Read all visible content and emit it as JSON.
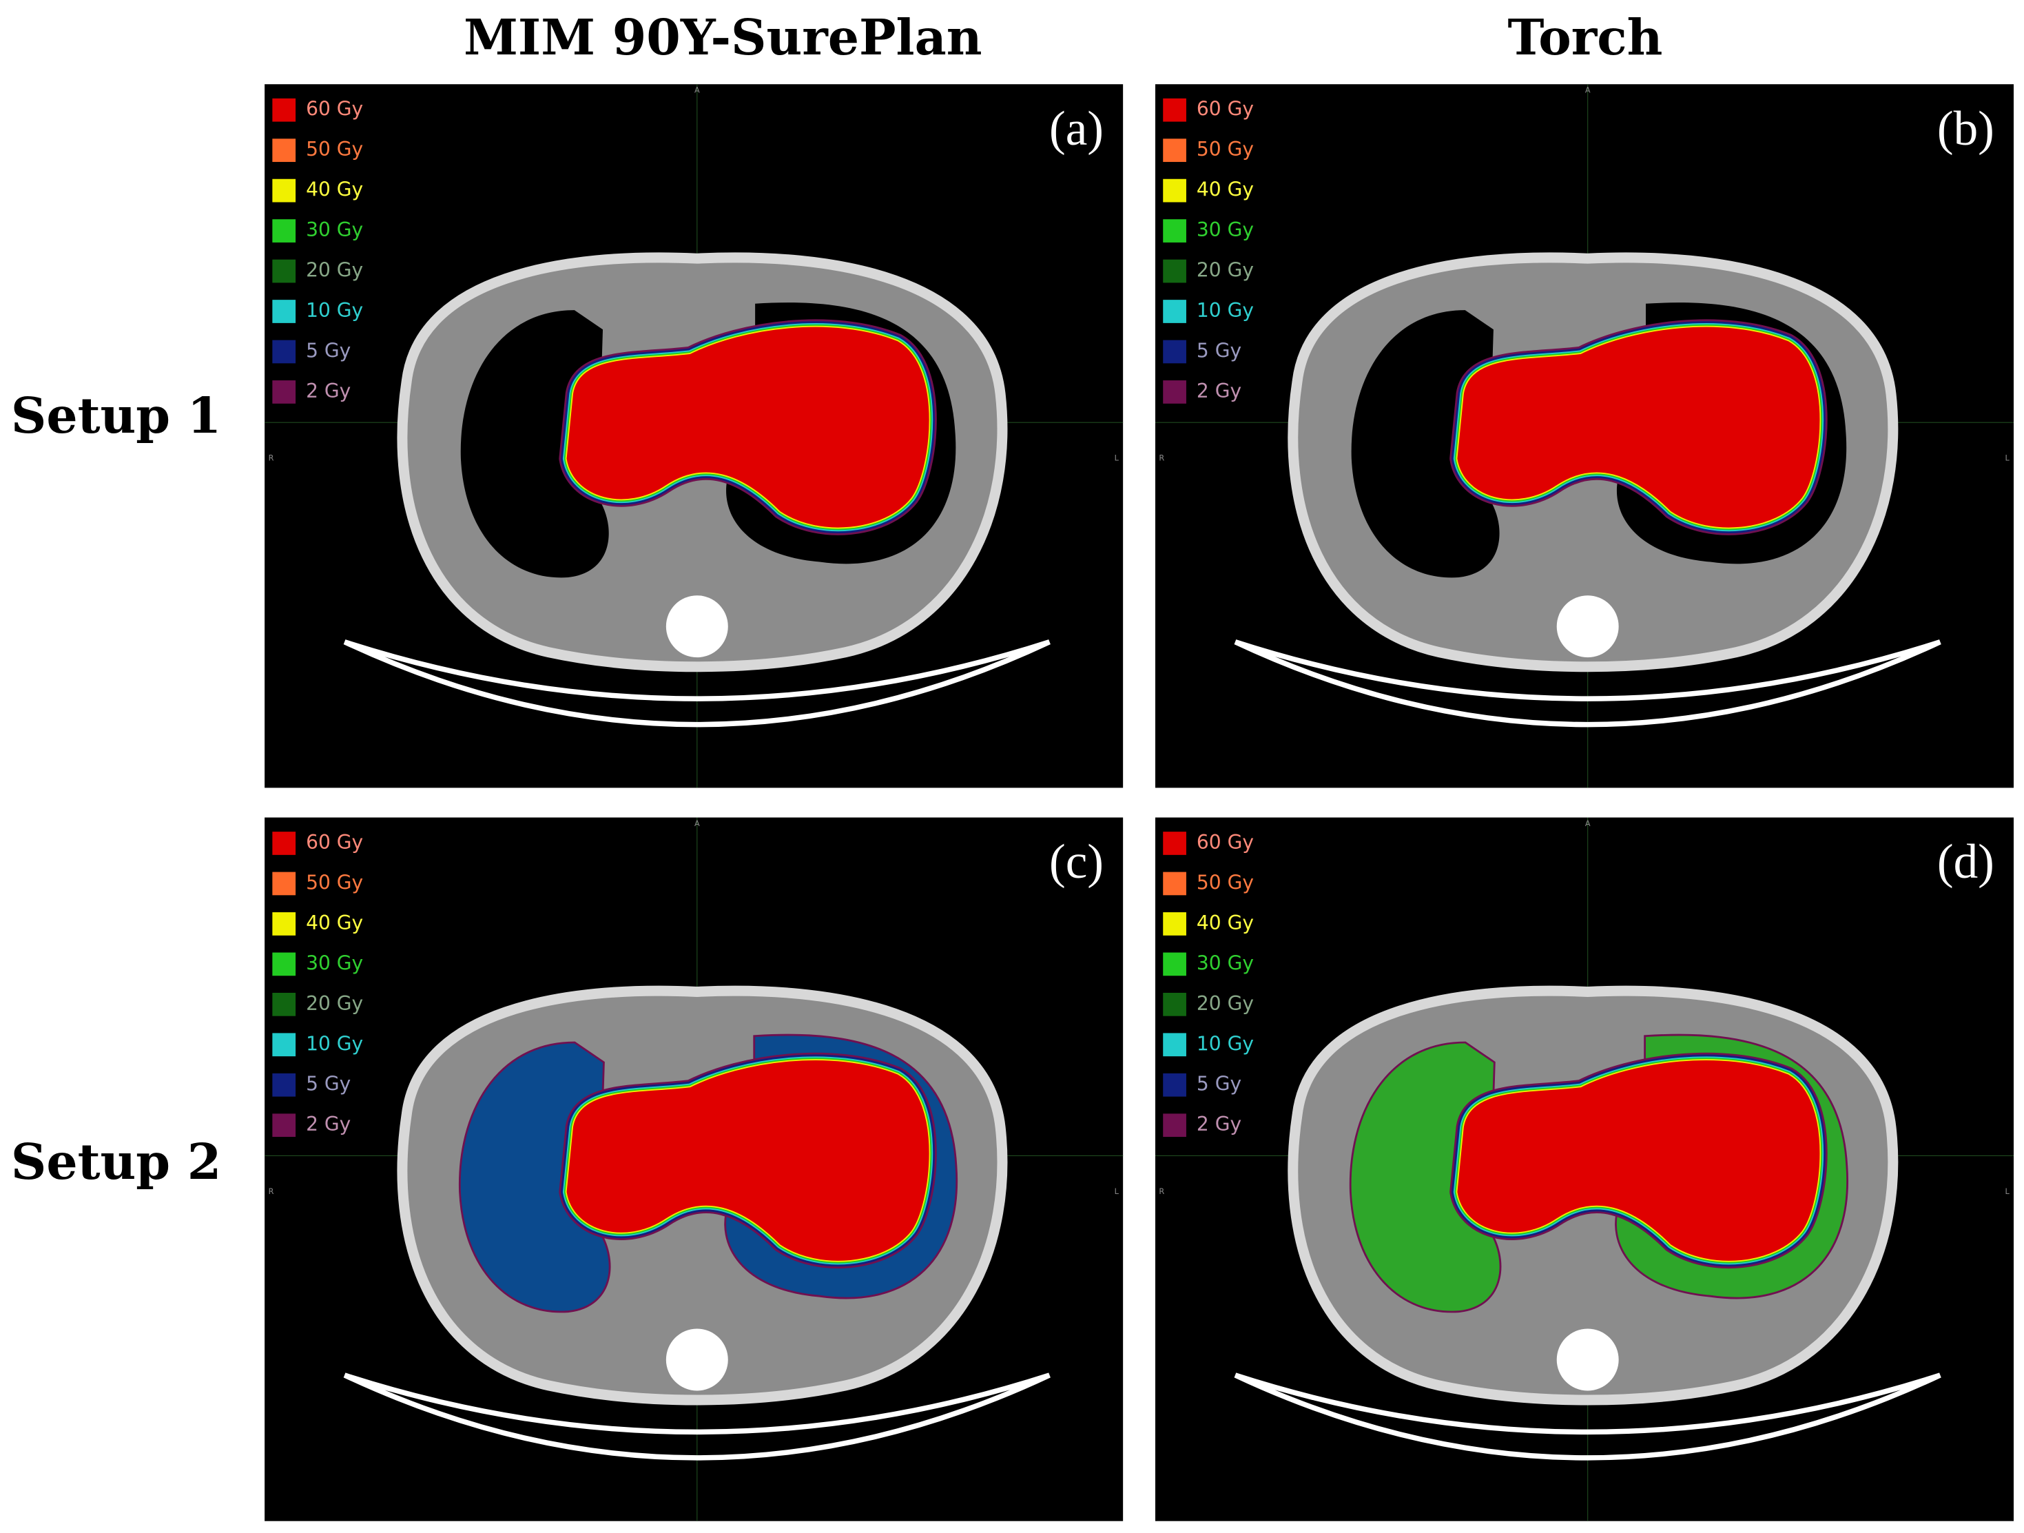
{
  "columns": [
    "MIM 90Y-SurePlan",
    "Torch"
  ],
  "rows": [
    "Setup 1",
    "Setup 2"
  ],
  "dose_legend": [
    {
      "label": "60 Gy",
      "color": "#e00000",
      "text_color": "#ff8a7a"
    },
    {
      "label": "50 Gy",
      "color": "#ff6a2a",
      "text_color": "#ff7a40"
    },
    {
      "label": "40 Gy",
      "color": "#f0f000",
      "text_color": "#ffff40"
    },
    {
      "label": "30 Gy",
      "color": "#22cc22",
      "text_color": "#30d030"
    },
    {
      "label": "20 Gy",
      "color": "#116611",
      "text_color": "#88a888"
    },
    {
      "label": "10 Gy",
      "color": "#22cccc",
      "text_color": "#30d0d0"
    },
    {
      "label": "5 Gy",
      "color": "#102080",
      "text_color": "#9a9ac0"
    },
    {
      "label": "2 Gy",
      "color": "#701050",
      "text_color": "#c090b0"
    }
  ],
  "orientation": {
    "top": "A",
    "left": "R",
    "right": "L"
  },
  "panels": [
    {
      "label": "(a)",
      "lung_dose_color": null
    },
    {
      "label": "(b)",
      "lung_dose_color": null
    },
    {
      "label": "(c)",
      "lung_dose_color": "#0b4a8e"
    },
    {
      "label": "(d)",
      "lung_dose_color": "#2ea62a"
    }
  ]
}
